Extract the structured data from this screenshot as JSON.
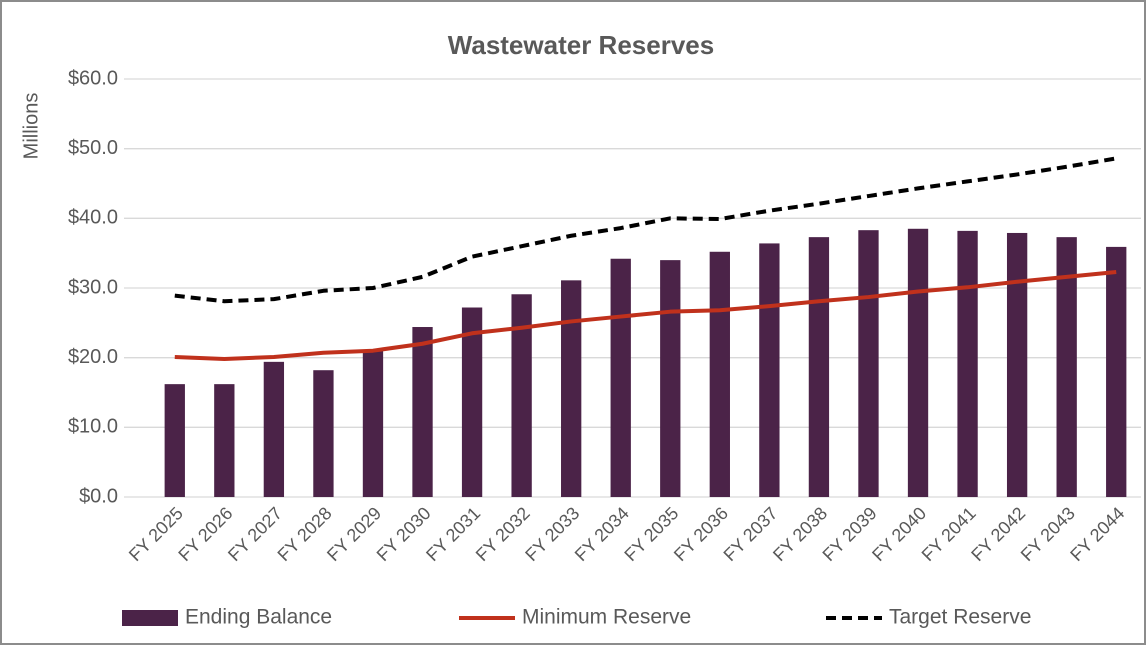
{
  "chart_data": {
    "type": "bar",
    "title": "Wastewater Reserves",
    "y_axis_label": "Millions",
    "categories": [
      "FY 2025",
      "FY 2026",
      "FY 2027",
      "FY 2028",
      "FY 2029",
      "FY 2030",
      "FY 2031",
      "FY 2032",
      "FY 2033",
      "FY 2034",
      "FY 2035",
      "FY 2036",
      "FY 2037",
      "FY 2038",
      "FY 2039",
      "FY 2040",
      "FY 2041",
      "FY 2042",
      "FY 2043",
      "FY 2044"
    ],
    "series": [
      {
        "name": "Ending Balance",
        "type": "bar",
        "color": "#4b2348",
        "values": [
          16.2,
          16.2,
          19.4,
          18.2,
          21.0,
          24.4,
          27.2,
          29.1,
          31.1,
          34.2,
          34.0,
          35.2,
          36.4,
          37.3,
          38.3,
          38.5,
          38.2,
          37.9,
          37.3,
          35.9
        ]
      },
      {
        "name": "Minimum Reserve",
        "type": "line",
        "color": "#c0311c",
        "values": [
          20.1,
          19.8,
          20.1,
          20.7,
          21.0,
          22.0,
          23.5,
          24.3,
          25.2,
          25.9,
          26.6,
          26.8,
          27.4,
          28.1,
          28.7,
          29.5,
          30.1,
          30.9,
          31.6,
          32.3
        ]
      },
      {
        "name": "Target Reserve",
        "type": "line",
        "color": "#000000",
        "dashed": true,
        "values": [
          28.9,
          28.1,
          28.4,
          29.6,
          30.0,
          31.6,
          34.5,
          36.0,
          37.5,
          38.6,
          40.0,
          39.9,
          41.1,
          42.1,
          43.2,
          44.3,
          45.3,
          46.3,
          47.4,
          48.6
        ]
      }
    ],
    "ylim": [
      0,
      60
    ],
    "yticks": [
      {
        "value": 0,
        "label": "$0.0"
      },
      {
        "value": 10,
        "label": "$10.0"
      },
      {
        "value": 20,
        "label": "$20.0"
      },
      {
        "value": 30,
        "label": "$30.0"
      },
      {
        "value": 40,
        "label": "$40.0"
      },
      {
        "value": 50,
        "label": "$50.0"
      },
      {
        "value": 60,
        "label": "$60.0"
      }
    ],
    "grid": true,
    "legend": "bottom"
  }
}
